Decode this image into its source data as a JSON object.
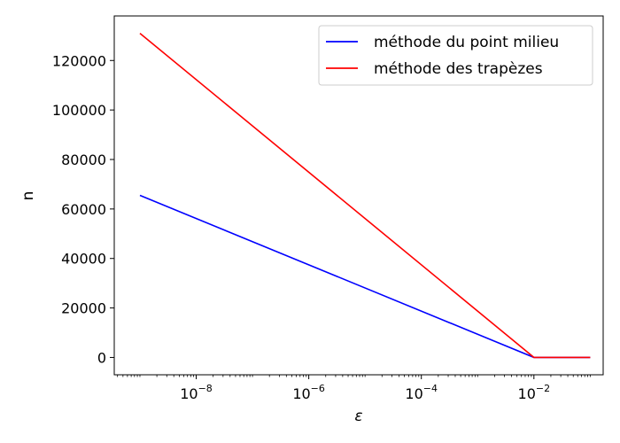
{
  "chart_data": {
    "type": "line",
    "x_scale": "log",
    "xlabel": "ε",
    "ylabel": "n",
    "xlim": [
      3.5e-10,
      0.17
    ],
    "ylim": [
      -7000,
      138000
    ],
    "x_ticks": [
      1e-08,
      1e-06,
      0.0001,
      0.01
    ],
    "x_tick_labels": [
      {
        "base": "10",
        "exp": "−8"
      },
      {
        "base": "10",
        "exp": "−6"
      },
      {
        "base": "10",
        "exp": "−4"
      },
      {
        "base": "10",
        "exp": "−2"
      }
    ],
    "y_ticks": [
      0,
      20000,
      40000,
      60000,
      80000,
      100000,
      120000
    ],
    "y_tick_labels": [
      "0",
      "20000",
      "40000",
      "60000",
      "80000",
      "100000",
      "120000"
    ],
    "grid": false,
    "legend_position": "upper right",
    "series": [
      {
        "name": "méthode du point milieu",
        "color": "#0000ff",
        "x": [
          1e-09,
          0.01,
          0.1
        ],
        "y": [
          65500,
          0,
          0
        ]
      },
      {
        "name": "méthode des trapèzes",
        "color": "#ff0000",
        "x": [
          1e-09,
          0.01,
          0.1
        ],
        "y": [
          131000,
          0,
          0
        ]
      }
    ]
  }
}
